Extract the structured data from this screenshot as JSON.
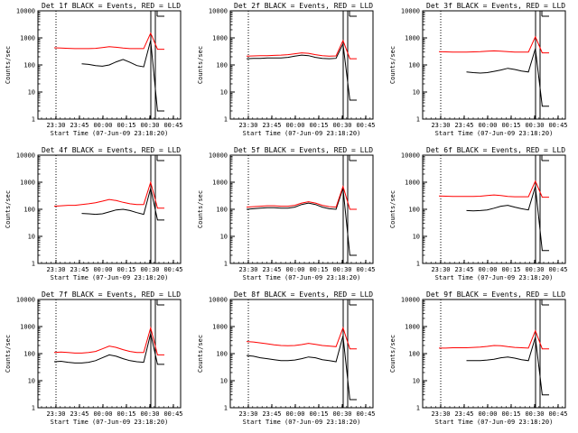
{
  "colors": {
    "events": "#000000",
    "lld": "#ff0000",
    "background": "#ffffff"
  },
  "figure": {
    "ylabel": "Counts/sec",
    "xlabel": "Start Time (07-Jun-09 23:18:20)"
  },
  "chart_data": [
    {
      "type": "line",
      "title": "Det 1f BLACK = Events, RED = LLD",
      "xlabel": "Start Time (07-Jun-09 23:18:20)",
      "ylabel": "Counts/sec",
      "x_ticks": [
        "23:30",
        "23:45",
        "00:00",
        "00:15",
        "00:30",
        "00:45"
      ],
      "y_ticks": [
        "1",
        "10",
        "100",
        "1000",
        "10000"
      ],
      "ylim": [
        1,
        10000
      ],
      "yscale": "log",
      "series": [
        {
          "name": "Events",
          "color": "black",
          "values": [
            null,
            null,
            null,
            null,
            110,
            105,
            95,
            90,
            100,
            130,
            160,
            125,
            95,
            85,
            800,
            2,
            2
          ]
        },
        {
          "name": "LLD",
          "color": "red",
          "values": [
            430,
            420,
            410,
            400,
            400,
            400,
            410,
            440,
            470,
            450,
            420,
            400,
            400,
            400,
            1500,
            380,
            380
          ]
        }
      ]
    },
    {
      "type": "line",
      "title": "Det 2f BLACK = Events, RED = LLD",
      "xlabel": "Start Time (07-Jun-09 23:18:20)",
      "ylabel": "Counts/sec",
      "x_ticks": [
        "23:30",
        "23:45",
        "00:00",
        "00:15",
        "00:30",
        "00:45"
      ],
      "y_ticks": [
        "1",
        "10",
        "100",
        "1000",
        "10000"
      ],
      "ylim": [
        1,
        10000
      ],
      "yscale": "log",
      "series": [
        {
          "name": "Events",
          "color": "black",
          "values": [
            170,
            175,
            175,
            180,
            180,
            180,
            190,
            210,
            230,
            220,
            190,
            175,
            170,
            175,
            600,
            5,
            5
          ]
        },
        {
          "name": "LLD",
          "color": "red",
          "values": [
            210,
            215,
            220,
            220,
            225,
            230,
            240,
            260,
            280,
            270,
            240,
            220,
            210,
            215,
            800,
            170,
            170
          ]
        }
      ]
    },
    {
      "type": "line",
      "title": "Det 3f BLACK = Events, RED = LLD",
      "xlabel": "Start Time (07-Jun-09 23:18:20)",
      "ylabel": "Counts/sec",
      "x_ticks": [
        "23:30",
        "23:45",
        "00:00",
        "00:15",
        "00:30",
        "00:45"
      ],
      "y_ticks": [
        "1",
        "10",
        "100",
        "1000",
        "10000"
      ],
      "ylim": [
        1,
        10000
      ],
      "yscale": "log",
      "series": [
        {
          "name": "Events",
          "color": "black",
          "values": [
            null,
            null,
            null,
            null,
            55,
            52,
            50,
            52,
            58,
            65,
            75,
            68,
            60,
            55,
            400,
            3,
            3
          ]
        },
        {
          "name": "LLD",
          "color": "red",
          "values": [
            310,
            305,
            300,
            300,
            300,
            305,
            310,
            320,
            330,
            320,
            310,
            300,
            300,
            300,
            1100,
            280,
            280
          ]
        }
      ]
    },
    {
      "type": "line",
      "title": "Det 4f BLACK = Events, RED = LLD",
      "xlabel": "Start Time (07-Jun-09 23:18:20)",
      "ylabel": "Counts/sec",
      "x_ticks": [
        "23:30",
        "23:45",
        "00:00",
        "00:15",
        "00:30",
        "00:45"
      ],
      "y_ticks": [
        "1",
        "10",
        "100",
        "1000",
        "10000"
      ],
      "ylim": [
        1,
        10000
      ],
      "yscale": "log",
      "series": [
        {
          "name": "Events",
          "color": "black",
          "values": [
            null,
            null,
            null,
            null,
            70,
            68,
            65,
            68,
            80,
            95,
            100,
            90,
            75,
            65,
            600,
            40,
            40
          ]
        },
        {
          "name": "LLD",
          "color": "red",
          "values": [
            130,
            135,
            140,
            140,
            150,
            160,
            175,
            200,
            230,
            210,
            180,
            160,
            150,
            150,
            1000,
            110,
            110
          ]
        }
      ]
    },
    {
      "type": "line",
      "title": "Det 5f BLACK = Events, RED = LLD",
      "xlabel": "Start Time (07-Jun-09 23:18:20)",
      "ylabel": "Counts/sec",
      "x_ticks": [
        "23:30",
        "23:45",
        "00:00",
        "00:15",
        "00:30",
        "00:45"
      ],
      "y_ticks": [
        "1",
        "10",
        "100",
        "1000",
        "10000"
      ],
      "ylim": [
        1,
        10000
      ],
      "yscale": "log",
      "series": [
        {
          "name": "Events",
          "color": "black",
          "values": [
            100,
            105,
            110,
            115,
            115,
            110,
            110,
            120,
            150,
            170,
            150,
            120,
            105,
            100,
            600,
            2,
            2
          ]
        },
        {
          "name": "LLD",
          "color": "red",
          "values": [
            120,
            125,
            130,
            135,
            135,
            130,
            130,
            140,
            170,
            190,
            170,
            140,
            125,
            120,
            700,
            100,
            100
          ]
        }
      ]
    },
    {
      "type": "line",
      "title": "Det 6f BLACK = Events, RED = LLD",
      "xlabel": "Start Time (07-Jun-09 23:18:20)",
      "ylabel": "Counts/sec",
      "x_ticks": [
        "23:30",
        "23:45",
        "00:00",
        "00:15",
        "00:30",
        "00:45"
      ],
      "y_ticks": [
        "1",
        "10",
        "100",
        "1000",
        "10000"
      ],
      "ylim": [
        1,
        10000
      ],
      "yscale": "log",
      "series": [
        {
          "name": "Events",
          "color": "black",
          "values": [
            null,
            null,
            null,
            null,
            90,
            88,
            90,
            95,
            110,
            130,
            140,
            120,
            105,
            95,
            700,
            3,
            3
          ]
        },
        {
          "name": "LLD",
          "color": "red",
          "values": [
            310,
            305,
            300,
            300,
            300,
            300,
            305,
            320,
            340,
            320,
            300,
            290,
            290,
            290,
            1100,
            280,
            280
          ]
        }
      ]
    },
    {
      "type": "line",
      "title": "Det 7f BLACK = Events, RED = LLD",
      "xlabel": "Start Time (07-Jun-09 23:18:20)",
      "ylabel": "Counts/sec",
      "x_ticks": [
        "23:30",
        "23:45",
        "00:00",
        "00:15",
        "00:30",
        "00:45"
      ],
      "y_ticks": [
        "1",
        "10",
        "100",
        "1000",
        "10000"
      ],
      "ylim": [
        1,
        10000
      ],
      "yscale": "log",
      "series": [
        {
          "name": "Events",
          "color": "black",
          "values": [
            50,
            52,
            48,
            45,
            45,
            48,
            55,
            70,
            90,
            80,
            65,
            55,
            50,
            48,
            550,
            40,
            40
          ]
        },
        {
          "name": "LLD",
          "color": "red",
          "values": [
            110,
            115,
            110,
            105,
            105,
            110,
            120,
            150,
            190,
            170,
            140,
            120,
            110,
            110,
            900,
            90,
            90
          ]
        }
      ]
    },
    {
      "type": "line",
      "title": "Det 8f BLACK = Events, RED = LLD",
      "xlabel": "Start Time (07-Jun-09 23:18:20)",
      "ylabel": "Counts/sec",
      "x_ticks": [
        "23:30",
        "23:45",
        "00:00",
        "00:15",
        "00:30",
        "00:45"
      ],
      "y_ticks": [
        "1",
        "10",
        "100",
        "1000",
        "10000"
      ],
      "ylim": [
        1,
        10000
      ],
      "yscale": "log",
      "series": [
        {
          "name": "Events",
          "color": "black",
          "values": [
            85,
            80,
            70,
            65,
            60,
            55,
            55,
            58,
            65,
            75,
            70,
            60,
            55,
            50,
            450,
            2,
            2
          ]
        },
        {
          "name": "LLD",
          "color": "red",
          "values": [
            280,
            270,
            250,
            230,
            210,
            200,
            195,
            200,
            215,
            240,
            220,
            200,
            190,
            180,
            900,
            150,
            150
          ]
        }
      ]
    },
    {
      "type": "line",
      "title": "Det 9f BLACK = Events, RED = LLD",
      "xlabel": "Start Time (07-Jun-09 23:18:20)",
      "ylabel": "Counts/sec",
      "x_ticks": [
        "23:30",
        "23:45",
        "00:00",
        "00:15",
        "00:30",
        "00:45"
      ],
      "y_ticks": [
        "1",
        "10",
        "100",
        "1000",
        "10000"
      ],
      "ylim": [
        1,
        10000
      ],
      "yscale": "log",
      "series": [
        {
          "name": "Events",
          "color": "black",
          "values": [
            null,
            null,
            null,
            null,
            55,
            55,
            55,
            58,
            62,
            70,
            75,
            68,
            60,
            55,
            400,
            3,
            3
          ]
        },
        {
          "name": "LLD",
          "color": "red",
          "values": [
            160,
            160,
            165,
            165,
            165,
            170,
            175,
            185,
            200,
            195,
            180,
            170,
            165,
            160,
            700,
            150,
            150
          ]
        }
      ]
    }
  ]
}
